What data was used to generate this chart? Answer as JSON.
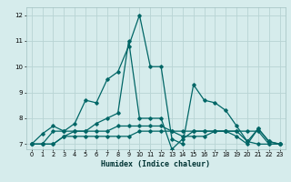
{
  "xlabel": "Humidex (Indice chaleur)",
  "xlim": [
    -0.5,
    23.5
  ],
  "ylim": [
    6.8,
    12.3
  ],
  "yticks": [
    7,
    8,
    9,
    10,
    11,
    12
  ],
  "xticks": [
    0,
    1,
    2,
    3,
    4,
    5,
    6,
    7,
    8,
    9,
    10,
    11,
    12,
    13,
    14,
    15,
    16,
    17,
    18,
    19,
    20,
    21,
    22,
    23
  ],
  "bg_color": "#d6ecec",
  "grid_color": "#b8d4d4",
  "line_color": "#006666",
  "curves": [
    [
      7.0,
      7.4,
      7.7,
      7.5,
      7.8,
      8.7,
      8.6,
      9.5,
      9.8,
      10.8,
      12.0,
      10.0,
      10.0,
      7.2,
      7.0,
      9.3,
      8.7,
      8.6,
      8.3,
      7.7,
      7.1,
      7.6,
      7.1,
      7.0
    ],
    [
      7.0,
      7.0,
      7.5,
      7.5,
      7.5,
      7.5,
      7.5,
      7.5,
      7.7,
      7.7,
      7.7,
      7.7,
      7.7,
      7.5,
      7.3,
      7.3,
      7.3,
      7.5,
      7.5,
      7.5,
      7.5,
      7.5,
      7.0,
      7.0
    ],
    [
      7.0,
      7.0,
      7.0,
      7.3,
      7.3,
      7.3,
      7.3,
      7.3,
      7.3,
      7.3,
      7.5,
      7.5,
      7.5,
      7.5,
      7.5,
      7.5,
      7.5,
      7.5,
      7.5,
      7.5,
      7.1,
      7.0,
      7.0,
      7.0
    ],
    [
      7.0,
      7.0,
      7.0,
      7.3,
      7.5,
      7.5,
      7.8,
      8.0,
      8.2,
      11.0,
      8.0,
      8.0,
      8.0,
      6.8,
      7.2,
      7.5,
      7.5,
      7.5,
      7.5,
      7.3,
      7.0,
      7.6,
      7.1,
      7.0
    ]
  ]
}
